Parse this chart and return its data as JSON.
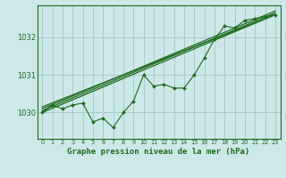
{
  "title": "Graphe pression niveau de la mer (hPa)",
  "background_color": "#cce8e8",
  "grid_color": "#aacccc",
  "line_color": "#1a6b1a",
  "xlim": [
    -0.5,
    23.5
  ],
  "ylim": [
    1029.3,
    1032.85
  ],
  "yticks": [
    1030,
    1031,
    1032
  ],
  "xticks": [
    0,
    1,
    2,
    3,
    4,
    5,
    6,
    7,
    8,
    9,
    10,
    11,
    12,
    13,
    14,
    15,
    16,
    17,
    18,
    19,
    20,
    21,
    22,
    23
  ],
  "hours": [
    0,
    1,
    2,
    3,
    4,
    5,
    6,
    7,
    8,
    9,
    10,
    11,
    12,
    13,
    14,
    15,
    16,
    17,
    18,
    19,
    20,
    21,
    22,
    23
  ],
  "pressure": [
    1030.0,
    1030.2,
    1030.1,
    1030.2,
    1030.25,
    1029.75,
    1029.85,
    1029.6,
    1030.0,
    1030.3,
    1031.0,
    1030.7,
    1030.75,
    1030.65,
    1030.65,
    1031.0,
    1031.45,
    1031.95,
    1032.3,
    1032.25,
    1032.45,
    1032.5,
    1032.55,
    1032.6
  ],
  "trend_lines": [
    [
      0,
      1030.0,
      23,
      1032.6
    ],
    [
      0,
      1030.05,
      23,
      1032.65
    ],
    [
      0,
      1030.1,
      23,
      1032.7
    ],
    [
      0,
      1030.15,
      23,
      1032.6
    ]
  ],
  "xlabel_fontsize": 6.5,
  "ytick_fontsize": 6.0,
  "xtick_fontsize": 4.8
}
